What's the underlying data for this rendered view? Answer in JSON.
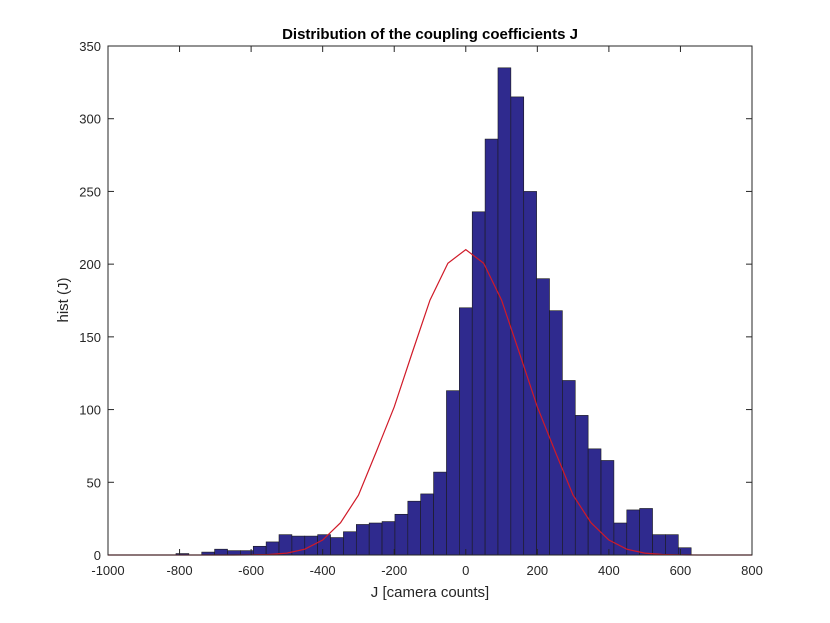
{
  "chart_data": {
    "type": "bar",
    "title": "Distribution of the coupling coefficients J",
    "xlabel": "J [camera counts]",
    "ylabel": "hist (J)",
    "xlim": [
      -1000,
      800
    ],
    "ylim": [
      0,
      350
    ],
    "xticks": [
      "-1000",
      "-800",
      "-600",
      "-400",
      "-200",
      "0",
      "200",
      "400",
      "600",
      "800"
    ],
    "yticks": [
      "0",
      "50",
      "100",
      "150",
      "200",
      "250",
      "300",
      "350"
    ],
    "grid": false,
    "legend": "none",
    "bar_color": "#2f2a8e",
    "bar_edge_color": "#1a1a1a",
    "fit_color": "#d01a28",
    "bin_width": 36,
    "bin_centers": [
      -792,
      -756,
      -720,
      -684,
      -648,
      -612,
      -576,
      -540,
      -504,
      -468,
      -432,
      -396,
      -360,
      -324,
      -288,
      -252,
      -216,
      -180,
      -144,
      -108,
      -72,
      -36,
      0,
      36,
      72,
      108,
      144,
      180,
      216,
      252,
      288,
      324,
      360,
      396,
      432,
      468,
      504,
      540,
      576,
      612
    ],
    "values": [
      1,
      0,
      2,
      4,
      3,
      3,
      6,
      9,
      14,
      13,
      13,
      14,
      12,
      16,
      21,
      22,
      23,
      28,
      37,
      42,
      57,
      113,
      170,
      236,
      286,
      335,
      315,
      250,
      190,
      168,
      120,
      96,
      73,
      65,
      22,
      31,
      32,
      14,
      14,
      5
    ],
    "series": [
      {
        "type": "bar",
        "x": [
          -792,
          -756,
          -720,
          -684,
          -648,
          -612,
          -576,
          -540,
          -504,
          -468,
          -432,
          -396,
          -360,
          -324,
          -288,
          -252,
          -216,
          -180,
          -144,
          -108,
          -72,
          -36,
          0,
          36,
          72,
          108,
          144,
          180,
          216,
          252,
          288,
          324,
          360,
          396,
          432,
          468,
          504,
          540,
          576,
          612
        ],
        "values": [
          1,
          0,
          2,
          4,
          3,
          3,
          6,
          9,
          14,
          13,
          13,
          14,
          12,
          16,
          21,
          22,
          23,
          28,
          37,
          42,
          57,
          113,
          170,
          236,
          286,
          335,
          315,
          250,
          190,
          168,
          120,
          96,
          73,
          65,
          22,
          31,
          32,
          14,
          14,
          5
        ]
      },
      {
        "type": "line",
        "x": [
          -1000,
          -950,
          -900,
          -850,
          -800,
          -750,
          -700,
          -650,
          -600,
          -550,
          -500,
          -450,
          -400,
          -350,
          -300,
          -250,
          -200,
          -150,
          -100,
          -50,
          0,
          50,
          100,
          150,
          200,
          250,
          300,
          350,
          400,
          450,
          500,
          550,
          600,
          650,
          700,
          750,
          800
        ],
        "values": [
          0,
          0,
          0,
          0,
          0,
          0,
          0,
          0,
          0.1,
          0.4,
          1.3,
          4.0,
          10.3,
          22.2,
          41.1,
          71.1,
          101.8,
          138.9,
          175.3,
          200.6,
          210,
          200.6,
          175.3,
          138.9,
          101.8,
          71.1,
          41.1,
          22.2,
          10.3,
          4.0,
          1.3,
          0.4,
          0.1,
          0,
          0,
          0,
          0
        ]
      }
    ]
  }
}
